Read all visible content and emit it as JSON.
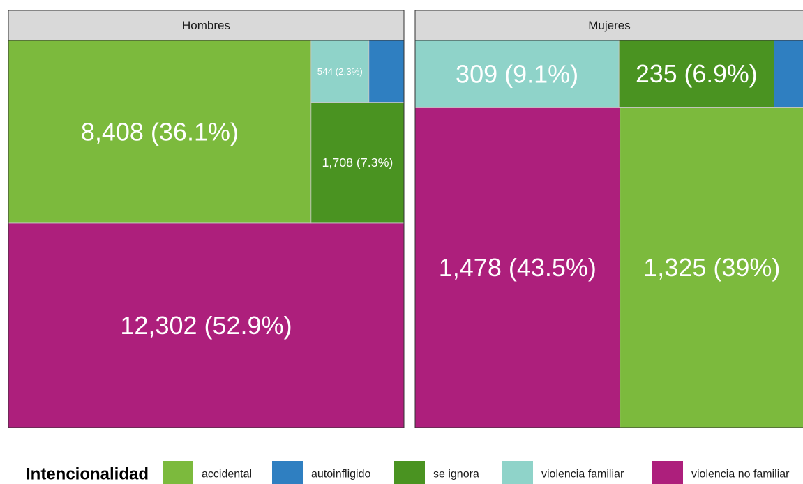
{
  "chart_data": {
    "type": "treemap",
    "legend_title": "Intencionalidad",
    "categories": [
      "accidental",
      "autoinfligido",
      "se ignora",
      "violencia familiar",
      "violencia no familiar"
    ],
    "colors": [
      "#7cba3d",
      "#2f7fc1",
      "#4a9321",
      "#8fd3c9",
      "#ad1f7c"
    ],
    "panels": [
      {
        "title": "Hombres",
        "values": [
          8408,
          329,
          1708,
          544,
          12302
        ],
        "value_labels": [
          "8,408 (36.1%)",
          null,
          "1,708 (7.3%)",
          "544 (2.3%)",
          "12,302 (52.9%)"
        ]
      },
      {
        "title": "Mujeres",
        "values": [
          1325,
          45,
          235,
          309,
          1478
        ],
        "value_labels": [
          "1,325 (39%)",
          null,
          "235 (6.9%)",
          "309 (9.1%)",
          "1,478 (43.5%)"
        ]
      }
    ]
  }
}
